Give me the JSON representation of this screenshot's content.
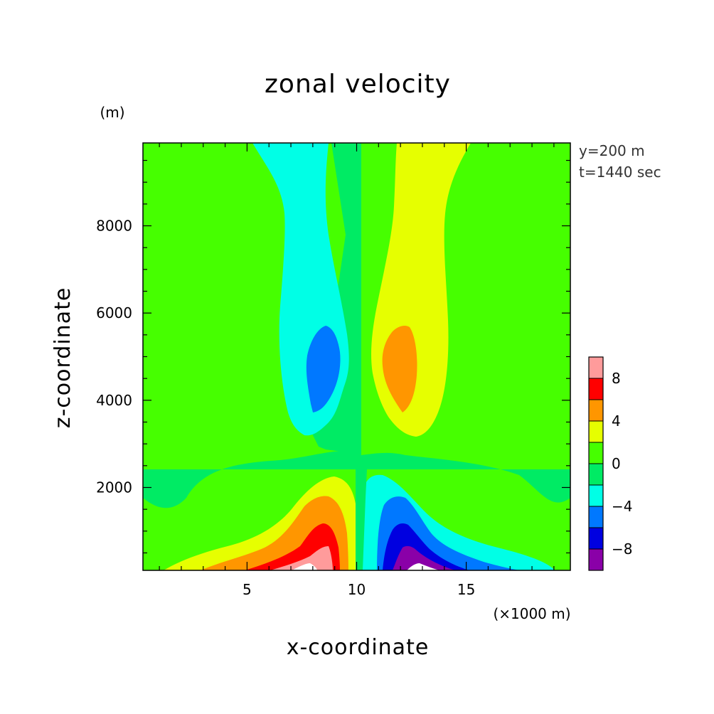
{
  "chart_data": {
    "type": "heatmap",
    "subtype": "filled-contour",
    "title": "zonal velocity",
    "xlabel": "x-coordinate",
    "ylabel": "z-coordinate",
    "x_unit": "(×1000 m)",
    "y_unit": "(m)",
    "annotations": [
      "y=200 m",
      "t=1440 sec"
    ],
    "xlim": [
      0.25,
      19.75
    ],
    "ylim": [
      100,
      9900
    ],
    "x_ticks": [
      5,
      10,
      15
    ],
    "y_ticks": [
      2000,
      4000,
      6000,
      8000
    ],
    "x_tick_labels": [
      "5",
      "10",
      "15"
    ],
    "y_tick_labels": [
      "2000",
      "4000",
      "6000",
      "8000"
    ],
    "grid": false,
    "colorbar": {
      "levels": [
        -10,
        -8,
        -6,
        -4,
        -2,
        0,
        2,
        4,
        6,
        8,
        10
      ],
      "labels": [
        "8",
        "4",
        "0",
        "−4",
        "−8"
      ],
      "label_values": [
        8,
        4,
        0,
        -4,
        -8
      ],
      "colors": [
        "#8a00a8",
        "#0000e0",
        "#0078ff",
        "#00ffe6",
        "#00eb64",
        "#46ff00",
        "#e6ff00",
        "#ff9600",
        "#ff0000",
        "#ff9b9b"
      ]
    },
    "regions": [
      {
        "level": "0 to 2",
        "color": "#46ff00",
        "description": "background positive weak"
      },
      {
        "level": "-2 to 0",
        "color": "#00eb64",
        "description": "central column and upper band"
      },
      {
        "level": "-4 to -2",
        "color": "#00ffe6",
        "description": "left upper plume, right lower lobe"
      },
      {
        "level": "-6 to -4",
        "color": "#0078ff",
        "description": "left core near z=4500, right lower core"
      },
      {
        "level": "2 to 4",
        "color": "#e6ff00",
        "description": "right upper plume, left lower lobe"
      },
      {
        "level": "4 to 6",
        "color": "#ff9600",
        "description": "right core near z=4500, left lower core"
      },
      {
        "level": "6 to 8",
        "color": "#ff0000",
        "description": "left lower core"
      },
      {
        "level": "8 to 10",
        "color": "#ff9b9b",
        "description": "left surface maximum"
      },
      {
        "level": "-8 to -6",
        "color": "#0000e0",
        "description": "right lower core"
      },
      {
        "level": "-10 to -8",
        "color": "#8a00a8",
        "description": "right surface minimum"
      }
    ]
  }
}
